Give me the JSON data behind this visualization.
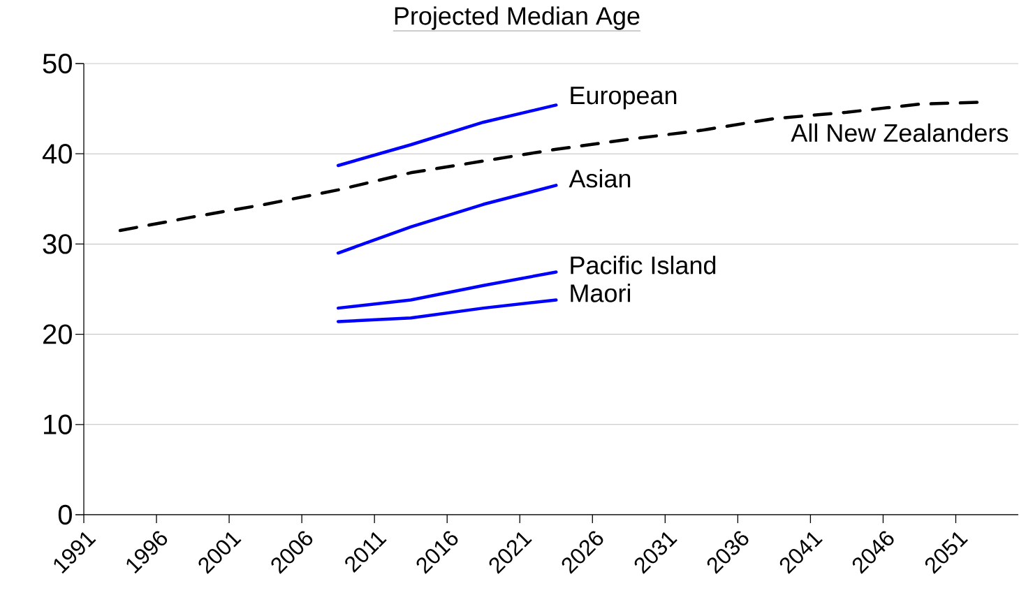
{
  "chart_data": {
    "type": "line",
    "title": "Projected Median Age",
    "xlim": [
      1991,
      2055.3
    ],
    "xticks": [
      1991,
      1996,
      2001,
      2006,
      2011,
      2016,
      2021,
      2026,
      2031,
      2036,
      2041,
      2046,
      2051
    ],
    "ylim": [
      0,
      50
    ],
    "yticks": [
      0,
      10,
      20,
      30,
      40,
      50
    ],
    "grid": "y",
    "series": [
      {
        "name": "All New Zealanders",
        "color": "#000000",
        "line_style": "dashed",
        "x": [
          1993.5,
          1998.5,
          2003.5,
          2008.5,
          2013.5,
          2018.5,
          2023.5,
          2028.5,
          2033.5,
          2038.5,
          2043.5,
          2048.5,
          2052.5
        ],
        "values": [
          31.5,
          33.0,
          34.4,
          36.0,
          37.9,
          39.2,
          40.5,
          41.6,
          42.6,
          43.9,
          44.6,
          45.5,
          45.7
        ]
      },
      {
        "name": "European",
        "color": "#0000ff",
        "line_style": "solid",
        "x": [
          2008.5,
          2013.5,
          2018.5,
          2023.5
        ],
        "values": [
          38.7,
          41.0,
          43.5,
          45.4
        ]
      },
      {
        "name": "Asian",
        "color": "#0000ff",
        "line_style": "solid",
        "x": [
          2008.5,
          2013.5,
          2018.5,
          2023.5
        ],
        "values": [
          29.0,
          31.9,
          34.4,
          36.5
        ]
      },
      {
        "name": "Pacific Island",
        "color": "#0000ff",
        "line_style": "solid",
        "x": [
          2008.5,
          2013.5,
          2018.5,
          2023.5
        ],
        "values": [
          22.9,
          23.8,
          25.4,
          26.9
        ]
      },
      {
        "name": "Maori",
        "color": "#0000ff",
        "line_style": "solid",
        "x": [
          2008.5,
          2013.5,
          2018.5,
          2023.5
        ],
        "values": [
          21.4,
          21.8,
          22.9,
          23.8
        ]
      }
    ]
  }
}
